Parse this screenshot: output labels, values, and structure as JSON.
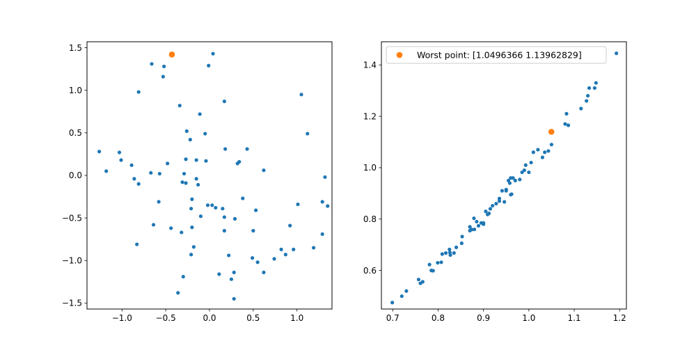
{
  "chart_data": [
    {
      "type": "scatter",
      "xlim": [
        -1.4,
        1.4
      ],
      "ylim": [
        -1.57,
        1.57
      ],
      "xticks": [
        -1.0,
        -0.5,
        0.0,
        0.5,
        1.0
      ],
      "xtick_labels": [
        "−1.0",
        "−0.5",
        "0.0",
        "0.5",
        "1.0"
      ],
      "yticks": [
        -1.5,
        -1.0,
        -0.5,
        0.0,
        0.5,
        1.0,
        1.5
      ],
      "ytick_labels": [
        "−1.5",
        "−1.0",
        "−0.5",
        "0.0",
        "0.5",
        "1.0",
        "1.5"
      ],
      "grid": false,
      "series": [
        {
          "color": "#1f77b4",
          "points": [
            [
              0.04,
              1.43
            ],
            [
              -0.66,
              1.31
            ],
            [
              -0.52,
              1.28
            ],
            [
              -0.01,
              1.29
            ],
            [
              -0.53,
              1.16
            ],
            [
              -0.81,
              0.98
            ],
            [
              1.05,
              0.95
            ],
            [
              0.17,
              0.87
            ],
            [
              -0.34,
              0.82
            ],
            [
              -0.11,
              0.72
            ],
            [
              -0.26,
              0.52
            ],
            [
              -0.05,
              0.49
            ],
            [
              1.12,
              0.49
            ],
            [
              -0.22,
              0.42
            ],
            [
              0.18,
              0.31
            ],
            [
              0.43,
              0.31
            ],
            [
              -1.26,
              0.28
            ],
            [
              -1.03,
              0.27
            ],
            [
              -0.27,
              0.19
            ],
            [
              -0.15,
              0.18
            ],
            [
              -0.04,
              0.17
            ],
            [
              -1.01,
              0.18
            ],
            [
              0.34,
              0.16
            ],
            [
              -0.48,
              0.14
            ],
            [
              0.32,
              0.14
            ],
            [
              -0.89,
              0.12
            ],
            [
              0.62,
              0.06
            ],
            [
              -1.18,
              0.05
            ],
            [
              -0.67,
              0.03
            ],
            [
              -0.57,
              0.02
            ],
            [
              -0.29,
              0.02
            ],
            [
              1.32,
              -0.02
            ],
            [
              -0.86,
              -0.04
            ],
            [
              -0.15,
              -0.04
            ],
            [
              -0.31,
              -0.08
            ],
            [
              -0.27,
              -0.09
            ],
            [
              -0.81,
              -0.1
            ],
            [
              -0.13,
              -0.11
            ],
            [
              -0.2,
              -0.28
            ],
            [
              0.38,
              -0.27
            ],
            [
              -0.58,
              -0.31
            ],
            [
              1.29,
              -0.31
            ],
            [
              1.01,
              -0.34
            ],
            [
              0.03,
              -0.35
            ],
            [
              0.07,
              -0.38
            ],
            [
              0.15,
              -0.39
            ],
            [
              -0.21,
              -0.39
            ],
            [
              0.53,
              -0.41
            ],
            [
              -0.1,
              -0.48
            ],
            [
              0.17,
              -0.49
            ],
            [
              0.29,
              -0.51
            ],
            [
              -0.64,
              -0.58
            ],
            [
              0.92,
              -0.59
            ],
            [
              -0.44,
              -0.62
            ],
            [
              -0.2,
              -0.61
            ],
            [
              0.5,
              -0.65
            ],
            [
              0.17,
              -0.65
            ],
            [
              -0.32,
              -0.67
            ],
            [
              1.29,
              -0.69
            ],
            [
              -0.83,
              -0.81
            ],
            [
              -0.18,
              -0.84
            ],
            [
              0.82,
              -0.87
            ],
            [
              0.96,
              -0.87
            ],
            [
              1.19,
              -0.85
            ],
            [
              0.87,
              -0.93
            ],
            [
              -0.21,
              -0.93
            ],
            [
              0.22,
              -0.94
            ],
            [
              0.49,
              -0.97
            ],
            [
              0.55,
              -1.02
            ],
            [
              0.74,
              -0.98
            ],
            [
              0.62,
              -1.14
            ],
            [
              0.28,
              -1.14
            ],
            [
              0.11,
              -1.16
            ],
            [
              -0.3,
              -1.19
            ],
            [
              0.25,
              -1.22
            ],
            [
              -0.36,
              -1.38
            ],
            [
              0.28,
              -1.45
            ],
            [
              1.35,
              -0.36
            ],
            [
              -0.02,
              -0.35
            ]
          ]
        },
        {
          "color": "#ff7f0e",
          "points": [
            [
              -0.43,
              1.42
            ]
          ]
        }
      ]
    },
    {
      "type": "scatter",
      "xlim": [
        0.675,
        1.215
      ],
      "ylim": [
        0.45,
        1.49
      ],
      "xticks": [
        0.7,
        0.8,
        0.9,
        1.0,
        1.1,
        1.2
      ],
      "xtick_labels": [
        "0.7",
        "0.8",
        "0.9",
        "1.0",
        "1.1",
        "1.2"
      ],
      "yticks": [
        0.6,
        0.8,
        1.0,
        1.2,
        1.4
      ],
      "ytick_labels": [
        "0.6",
        "0.8",
        "1.0",
        "1.2",
        "1.4"
      ],
      "grid": false,
      "legend": {
        "placement": "upper-left",
        "entries": [
          {
            "label": "Worst point: [1.0496366  1.13962829]",
            "color": "#ff7f0e"
          }
        ]
      },
      "series": [
        {
          "color": "#1f77b4",
          "points": [
            [
              0.699,
              0.475
            ],
            [
              0.72,
              0.5
            ],
            [
              0.73,
              0.52
            ],
            [
              0.757,
              0.565
            ],
            [
              0.761,
              0.55
            ],
            [
              0.766,
              0.556
            ],
            [
              0.781,
              0.623
            ],
            [
              0.785,
              0.6
            ],
            [
              0.789,
              0.599
            ],
            [
              0.799,
              0.63
            ],
            [
              0.807,
              0.632
            ],
            [
              0.809,
              0.664
            ],
            [
              0.817,
              0.668
            ],
            [
              0.825,
              0.682
            ],
            [
              0.827,
              0.66
            ],
            [
              0.835,
              0.668
            ],
            [
              0.84,
              0.69
            ],
            [
              0.852,
              0.706
            ],
            [
              0.853,
              0.732
            ],
            [
              0.87,
              0.755
            ],
            [
              0.874,
              0.759
            ],
            [
              0.879,
              0.803
            ],
            [
              0.885,
              0.79
            ],
            [
              0.889,
              0.774
            ],
            [
              0.9,
              0.78
            ],
            [
              0.905,
              0.83
            ],
            [
              0.909,
              0.818
            ],
            [
              0.912,
              0.822
            ],
            [
              0.92,
              0.852
            ],
            [
              0.928,
              0.86
            ],
            [
              0.935,
              0.87
            ],
            [
              0.941,
              0.91
            ],
            [
              0.946,
              0.867
            ],
            [
              0.95,
              0.915
            ],
            [
              0.958,
              0.94
            ],
            [
              0.96,
              0.895
            ],
            [
              0.962,
              0.897
            ],
            [
              0.965,
              0.96
            ],
            [
              0.97,
              0.95
            ],
            [
              0.98,
              0.954
            ],
            [
              0.985,
              0.982
            ],
            [
              0.99,
              0.99
            ],
            [
              1.0,
              0.982
            ],
            [
              1.005,
              1.02
            ],
            [
              1.01,
              1.06
            ],
            [
              1.02,
              1.07
            ],
            [
              1.03,
              1.04
            ],
            [
              1.035,
              1.06
            ],
            [
              1.05,
              1.09
            ],
            [
              1.08,
              1.17
            ],
            [
              1.083,
              1.21
            ],
            [
              1.087,
              1.165
            ],
            [
              1.115,
              1.23
            ],
            [
              1.127,
              1.26
            ],
            [
              1.13,
              1.28
            ],
            [
              1.133,
              1.31
            ],
            [
              1.145,
              1.31
            ],
            [
              1.148,
              1.33
            ],
            [
              1.193,
              1.445
            ],
            [
              0.88,
              0.76
            ],
            [
              0.895,
              0.785
            ],
            [
              0.915,
              0.84
            ],
            [
              0.955,
              0.95
            ],
            [
              0.993,
              1.01
            ],
            [
              1.043,
              1.065
            ],
            [
              0.826,
              0.67
            ],
            [
              0.87,
              0.77
            ],
            [
              0.935,
              0.88
            ],
            [
              0.9,
              0.785
            ],
            [
              0.96,
              0.96
            ],
            [
              0.95,
              0.91
            ]
          ]
        },
        {
          "color": "#ff7f0e",
          "points": [
            [
              1.0496366,
              1.13962829
            ]
          ]
        }
      ]
    }
  ]
}
